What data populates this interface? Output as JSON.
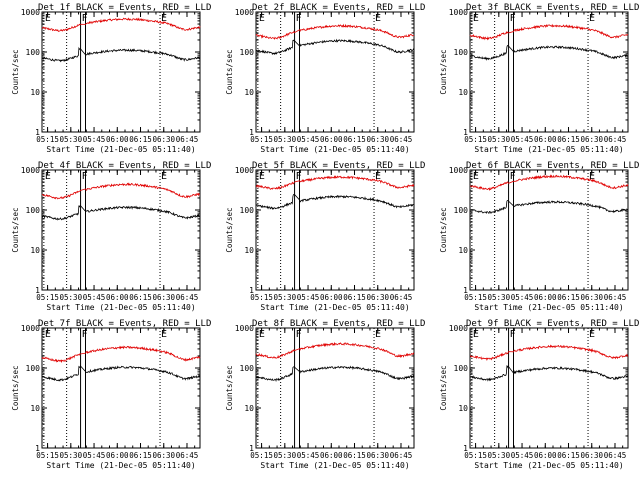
{
  "chart_data": {
    "type": "line",
    "scale": "log",
    "grid": false,
    "ylim": [
      1,
      1000
    ],
    "y_ticks": [
      "1",
      "10",
      "100",
      "1000"
    ],
    "x_ticks": [
      "05:15",
      "05:30",
      "05:45",
      "06:00",
      "06:15",
      "06:30",
      "06:45"
    ],
    "x_tick_hours": [
      5.25,
      5.5,
      5.75,
      6.0,
      6.25,
      6.5,
      6.75
    ],
    "xlim_hours": [
      5.19,
      6.89
    ],
    "ylabel": "Counts/sec",
    "xlabel": "Start Time (21-Dec-05 05:11:40)",
    "series_colors": {
      "events": "#000000",
      "lld": "#e00000"
    },
    "markers": [
      {
        "label": "E",
        "hour": 5.21,
        "style": "dotted"
      },
      {
        "label": "",
        "hour": 5.455,
        "style": "dotted"
      },
      {
        "label": "F",
        "hour": 5.605,
        "style": "solid"
      },
      {
        "label": "",
        "hour": 5.658,
        "style": "solid"
      },
      {
        "label": "E",
        "hour": 6.46,
        "style": "dotted"
      }
    ],
    "panels": [
      {
        "title": "Det 1f BLACK = Events, RED = LLD",
        "lld_base": 400,
        "lld_amp": 0.22,
        "events_base": 70,
        "events_amp": 0.2
      },
      {
        "title": "Det 2f BLACK = Events, RED = LLD",
        "lld_base": 260,
        "lld_amp": 0.24,
        "events_base": 110,
        "events_amp": 0.24
      },
      {
        "title": "Det 3f BLACK = Events, RED = LLD",
        "lld_base": 260,
        "lld_amp": 0.24,
        "events_base": 80,
        "events_amp": 0.22
      },
      {
        "title": "Det 4f BLACK = Events, RED = LLD",
        "lld_base": 240,
        "lld_amp": 0.26,
        "events_base": 70,
        "events_amp": 0.22
      },
      {
        "title": "Det 5f BLACK = Events, RED = LLD",
        "lld_base": 400,
        "lld_amp": 0.22,
        "events_base": 130,
        "events_amp": 0.22
      },
      {
        "title": "Det 6f BLACK = Events, RED = LLD",
        "lld_base": 400,
        "lld_amp": 0.24,
        "events_base": 100,
        "events_amp": 0.2
      },
      {
        "title": "Det 7f BLACK = Events, RED = LLD",
        "lld_base": 180,
        "lld_amp": 0.26,
        "events_base": 60,
        "events_amp": 0.24
      },
      {
        "title": "Det 8f BLACK = Events, RED = LLD",
        "lld_base": 220,
        "lld_amp": 0.26,
        "events_base": 60,
        "events_amp": 0.24
      },
      {
        "title": "Det 9f BLACK = Events, RED = LLD",
        "lld_base": 200,
        "lld_amp": 0.24,
        "events_base": 60,
        "events_amp": 0.22
      }
    ]
  }
}
